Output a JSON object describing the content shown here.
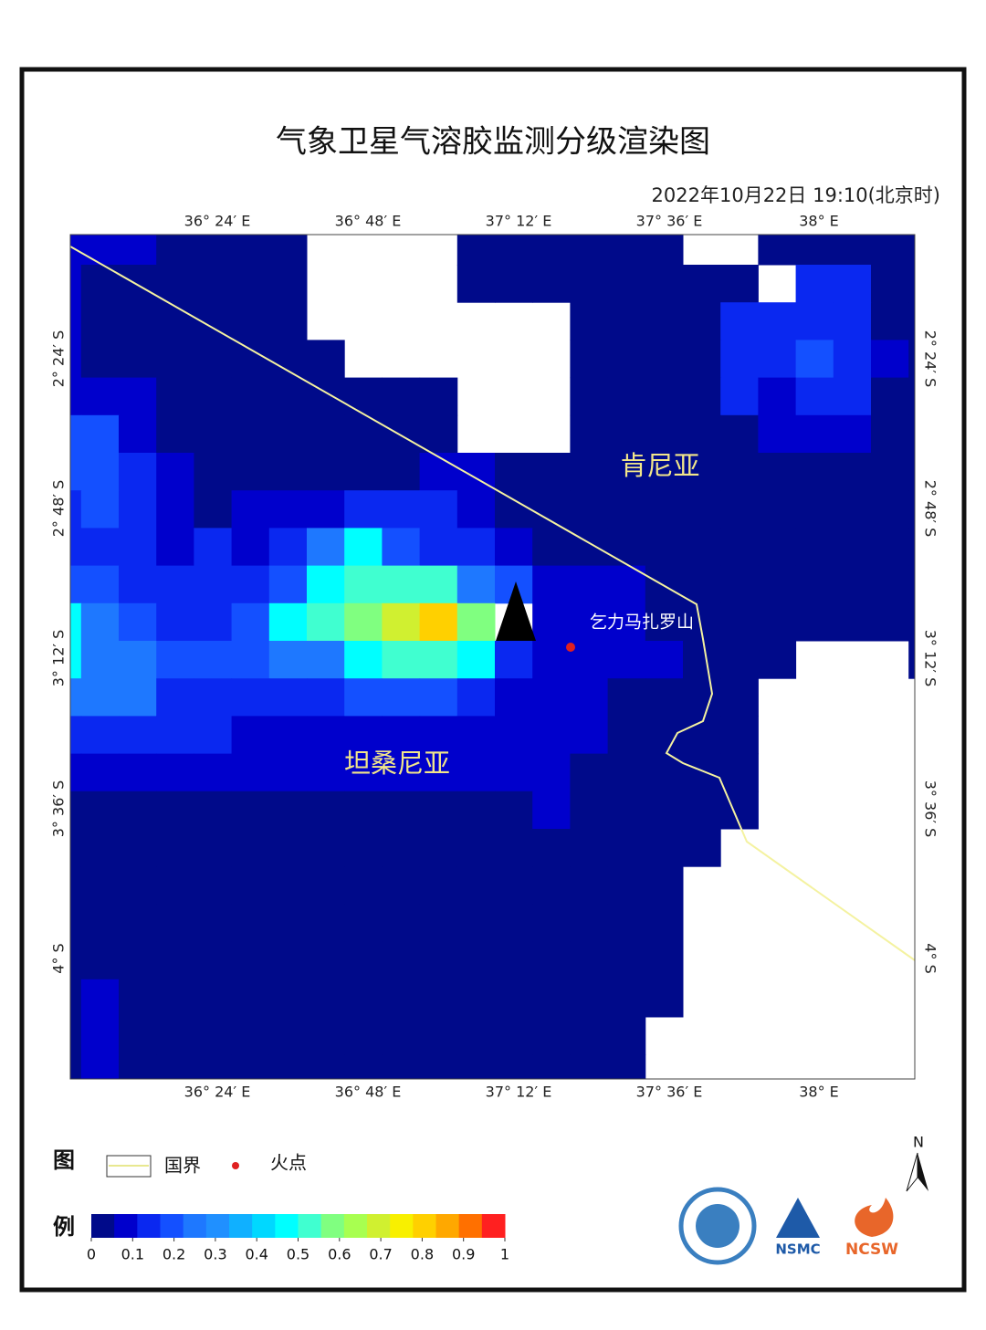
{
  "header": {
    "title": "气象卫星气溶胶监测分级渲染图",
    "time": "2022年10月22日 19:10(北京时)"
  },
  "map": {
    "lon_labels": [
      "36° 24′ E",
      "36° 48′ E",
      "37° 12′ E",
      "37° 36′ E",
      "38° E"
    ],
    "lat_labels": [
      "2° 24′ S",
      "2° 48′ S",
      "3° 12′ S",
      "3° 36′ S",
      "4° S"
    ],
    "places": [
      "肯尼亚",
      "坦桑尼亚",
      "乞力马扎罗山"
    ],
    "grid": {
      "rows": [
        [
          0.08,
          0.08,
          0.08,
          0.03,
          0.03,
          0.03,
          0.03,
          null,
          null,
          null,
          null,
          0.03,
          0.03,
          0.03,
          0.03,
          0.03,
          0.03,
          null,
          null,
          0.03,
          0.03,
          0.03,
          0.03,
          0.03
        ],
        [
          0.08,
          0.03,
          0.03,
          0.03,
          0.03,
          0.03,
          0.03,
          null,
          null,
          null,
          null,
          0.03,
          0.03,
          0.03,
          0.03,
          0.03,
          0.03,
          0.03,
          0.03,
          null,
          0.13,
          0.13,
          0.03,
          0.03
        ],
        [
          0.08,
          0.03,
          0.03,
          0.03,
          0.03,
          0.03,
          0.03,
          null,
          null,
          null,
          null,
          null,
          null,
          null,
          0.03,
          0.03,
          0.03,
          0.03,
          0.13,
          0.13,
          0.13,
          0.13,
          0.03,
          0.03
        ],
        [
          0.08,
          0.03,
          0.03,
          0.03,
          0.03,
          0.03,
          0.03,
          0.03,
          null,
          null,
          null,
          null,
          null,
          null,
          0.03,
          0.03,
          0.03,
          0.03,
          0.13,
          0.13,
          0.2,
          0.13,
          0.08,
          0.03
        ],
        [
          0.08,
          0.08,
          0.08,
          0.03,
          0.03,
          0.03,
          0.03,
          0.03,
          0.03,
          0.03,
          0.03,
          null,
          null,
          null,
          0.03,
          0.03,
          0.03,
          0.03,
          0.13,
          0.08,
          0.13,
          0.13,
          0.03,
          0.03
        ],
        [
          0.2,
          0.2,
          0.08,
          0.03,
          0.03,
          0.03,
          0.03,
          0.03,
          0.03,
          0.03,
          0.03,
          null,
          null,
          null,
          0.03,
          0.03,
          0.03,
          0.03,
          0.03,
          0.08,
          0.08,
          0.08,
          0.03,
          0.03
        ],
        [
          0.2,
          0.2,
          0.13,
          0.08,
          0.03,
          0.03,
          0.03,
          0.03,
          0.03,
          0.03,
          0.08,
          0.08,
          0.03,
          0.03,
          0.03,
          0.03,
          0.03,
          0.03,
          0.03,
          0.03,
          0.03,
          0.03,
          0.03,
          0.03
        ],
        [
          0.13,
          0.2,
          0.13,
          0.08,
          0.03,
          0.08,
          0.08,
          0.08,
          0.13,
          0.13,
          0.13,
          0.08,
          0.03,
          0.03,
          0.03,
          0.03,
          0.03,
          0.03,
          0.03,
          0.03,
          0.03,
          0.03,
          0.03,
          0.03
        ],
        [
          0.13,
          0.13,
          0.13,
          0.08,
          0.13,
          0.08,
          0.13,
          0.27,
          0.45,
          0.2,
          0.13,
          0.13,
          0.08,
          0.03,
          0.03,
          0.03,
          0.03,
          0.03,
          0.03,
          0.03,
          0.03,
          0.03,
          0.03,
          0.03
        ],
        [
          0.2,
          0.2,
          0.13,
          0.13,
          0.13,
          0.13,
          0.2,
          0.45,
          0.52,
          0.52,
          0.52,
          0.27,
          0.2,
          0.08,
          0.08,
          0.08,
          0.03,
          0.03,
          0.03,
          0.03,
          0.03,
          0.03,
          0.03,
          0.03
        ],
        [
          0.45,
          0.27,
          0.2,
          0.13,
          0.13,
          0.2,
          0.45,
          0.52,
          0.6,
          0.68,
          0.8,
          0.6,
          null,
          0.08,
          0.08,
          0.08,
          0.03,
          0.03,
          0.03,
          0.03,
          0.03,
          0.03,
          0.03,
          0.03
        ],
        [
          0.45,
          0.27,
          0.27,
          0.2,
          0.2,
          0.2,
          0.27,
          0.27,
          0.45,
          0.52,
          0.52,
          0.45,
          0.13,
          0.08,
          0.08,
          0.08,
          0.08,
          0.03,
          0.03,
          0.03,
          null,
          null,
          null,
          0.03
        ],
        [
          0.27,
          0.27,
          0.27,
          0.13,
          0.13,
          0.13,
          0.13,
          0.13,
          0.2,
          0.2,
          0.2,
          0.13,
          0.08,
          0.08,
          0.08,
          0.03,
          0.03,
          0.03,
          0.03,
          null,
          null,
          null,
          null,
          null
        ],
        [
          0.13,
          0.13,
          0.13,
          0.13,
          0.13,
          0.08,
          0.08,
          0.08,
          0.08,
          0.08,
          0.08,
          0.08,
          0.08,
          0.08,
          0.08,
          0.03,
          0.03,
          0.03,
          0.03,
          null,
          null,
          null,
          null,
          null
        ],
        [
          0.08,
          0.08,
          0.08,
          0.08,
          0.08,
          0.08,
          0.08,
          0.08,
          0.08,
          0.08,
          0.08,
          0.08,
          0.08,
          0.08,
          0.03,
          0.03,
          0.03,
          0.03,
          0.03,
          null,
          null,
          null,
          null,
          null
        ],
        [
          0.03,
          0.03,
          0.03,
          0.03,
          0.03,
          0.03,
          0.03,
          0.03,
          0.03,
          0.03,
          0.03,
          0.03,
          0.03,
          0.08,
          0.03,
          0.03,
          0.03,
          0.03,
          0.03,
          null,
          null,
          null,
          null,
          null
        ],
        [
          0.03,
          0.03,
          0.03,
          0.03,
          0.03,
          0.03,
          0.03,
          0.03,
          0.03,
          0.03,
          0.03,
          0.03,
          0.03,
          0.03,
          0.03,
          0.03,
          0.03,
          0.03,
          null,
          null,
          null,
          null,
          null,
          null
        ],
        [
          0.03,
          0.03,
          0.03,
          0.03,
          0.03,
          0.03,
          0.03,
          0.03,
          0.03,
          0.03,
          0.03,
          0.03,
          0.03,
          0.03,
          0.03,
          0.03,
          0.03,
          null,
          null,
          null,
          null,
          null,
          null,
          null
        ],
        [
          0.03,
          0.03,
          0.03,
          0.03,
          0.03,
          0.03,
          0.03,
          0.03,
          0.03,
          0.03,
          0.03,
          0.03,
          0.03,
          0.03,
          0.03,
          0.03,
          0.03,
          null,
          null,
          null,
          null,
          null,
          null,
          null
        ],
        [
          0.03,
          0.03,
          0.03,
          0.03,
          0.03,
          0.03,
          0.03,
          0.03,
          0.03,
          0.03,
          0.03,
          0.03,
          0.03,
          0.03,
          0.03,
          0.03,
          0.03,
          null,
          null,
          null,
          null,
          null,
          null,
          null
        ],
        [
          0.03,
          0.08,
          0.03,
          0.03,
          0.03,
          0.03,
          0.03,
          0.03,
          0.03,
          0.03,
          0.03,
          0.03,
          0.03,
          0.03,
          0.03,
          0.03,
          0.03,
          null,
          null,
          null,
          null,
          null,
          null,
          null
        ],
        [
          0.03,
          0.08,
          0.03,
          0.03,
          0.03,
          0.03,
          0.03,
          0.03,
          0.03,
          0.03,
          0.03,
          0.03,
          0.03,
          0.03,
          0.03,
          0.03,
          null,
          null,
          null,
          null,
          null,
          null,
          null,
          null
        ],
        [
          0.03,
          0.08,
          0.03,
          0.03,
          0.03,
          0.03,
          0.03,
          0.03,
          0.03,
          0.03,
          0.03,
          0.03,
          0.03,
          0.03,
          0.03,
          0.03,
          null,
          null,
          null,
          null,
          null,
          null,
          null,
          null
        ]
      ]
    }
  },
  "legend": {
    "title_top": "图",
    "title_bottom": "例",
    "border_label": "国界",
    "fire_label": "火点",
    "colorbar": {
      "lim": [
        0,
        1
      ],
      "ticks": [
        0,
        0.1,
        0.2,
        0.3,
        0.4,
        0.5,
        0.6,
        0.7,
        0.8,
        0.9,
        1
      ],
      "colors": [
        "#000a8a",
        "#0000cc",
        "#0a28f0",
        "#1450ff",
        "#1e78ff",
        "#2090ff",
        "#10b0ff",
        "#00d8ff",
        "#00ffff",
        "#40ffd0",
        "#80ff80",
        "#a8ff50",
        "#d0f030",
        "#f8f000",
        "#ffd000",
        "#ffa800",
        "#ff7000",
        "#ff2020"
      ]
    }
  },
  "north": "N",
  "logos": [
    "NSMC",
    "NCSW"
  ]
}
